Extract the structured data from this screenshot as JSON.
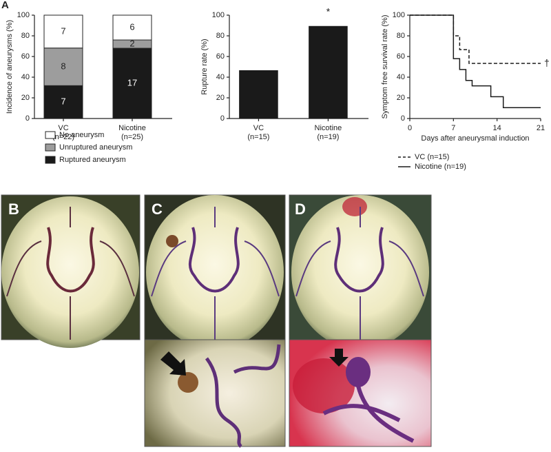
{
  "panel_labels": [
    "A",
    "B",
    "C",
    "D"
  ],
  "chart_data": [
    {
      "type": "stacked-bar",
      "ylabel": "Incidence of aneurysms (%)",
      "categories": [
        "VC",
        "Nicotine"
      ],
      "category_notes": [
        "(n=22)",
        "(n=25)"
      ],
      "ylim": [
        0,
        100
      ],
      "yticks": [
        0,
        20,
        40,
        60,
        80,
        100
      ],
      "series": [
        {
          "name": "Ruptured aneurysm",
          "color": "#1a1a1a",
          "values": [
            31.8,
            68
          ],
          "counts": [
            "7",
            "17"
          ]
        },
        {
          "name": "Unruptured aneurysm",
          "color": "#9d9d9d",
          "values": [
            36.4,
            8
          ],
          "counts": [
            "8",
            "2"
          ]
        },
        {
          "name": "No aneurysm",
          "color": "#ffffff",
          "values": [
            31.8,
            24
          ],
          "counts": [
            "7",
            "6"
          ]
        }
      ]
    },
    {
      "type": "bar",
      "ylabel": "Rupture rate (%)",
      "categories": [
        "VC",
        "Nicotine"
      ],
      "category_notes": [
        "(n=15)",
        "(n=19)"
      ],
      "values": [
        46.7,
        89.5
      ],
      "color": "#1a1a1a",
      "ylim": [
        0,
        100
      ],
      "yticks": [
        0,
        20,
        40,
        60,
        80,
        100
      ],
      "annotation": "*"
    },
    {
      "type": "step",
      "ylabel": "Symptom free survival rate (%)",
      "xlabel": "Days after aneurysmal induction",
      "xlim": [
        0,
        21
      ],
      "xticks": [
        0,
        7,
        14,
        21
      ],
      "ylim": [
        0,
        100
      ],
      "yticks": [
        0,
        20,
        40,
        60,
        80,
        100
      ],
      "annotation": "†",
      "series": [
        {
          "name": "VC (n=15)",
          "color": "#1a1a1a",
          "dashed": true,
          "x": [
            0,
            7,
            7,
            8,
            8,
            9.5,
            9.5,
            21
          ],
          "values": [
            100,
            100,
            80,
            80,
            66.7,
            66.7,
            53.3,
            53.3
          ]
        },
        {
          "name": "Nicotine (n=19)",
          "color": "#1a1a1a",
          "dashed": false,
          "x": [
            0,
            7,
            7,
            8,
            8,
            9,
            9,
            10,
            10,
            13,
            13,
            15,
            15,
            21
          ],
          "values": [
            100,
            100,
            57.9,
            57.9,
            47.4,
            47.4,
            36.8,
            36.8,
            31.6,
            31.6,
            21.1,
            21.1,
            10.5,
            10.5
          ]
        }
      ]
    }
  ]
}
